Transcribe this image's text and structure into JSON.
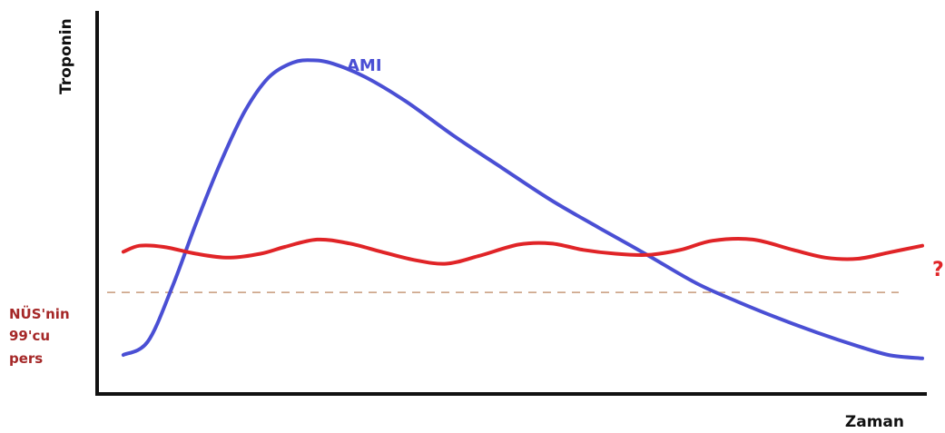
{
  "chart_data": {
    "type": "line",
    "title": "",
    "xlabel": "Zaman",
    "ylabel": "Troponin",
    "xlim": [
      0,
      100
    ],
    "ylim": [
      0,
      100
    ],
    "grid": false,
    "ticks": false,
    "series": [
      {
        "name": "AMI",
        "color": "#4a4fd4",
        "points": [
          [
            1,
            10.2
          ],
          [
            4,
            13.6
          ],
          [
            7,
            27.6
          ],
          [
            10,
            44.5
          ],
          [
            13,
            60.2
          ],
          [
            16,
            73.6
          ],
          [
            19,
            82.6
          ],
          [
            22,
            86.5
          ],
          [
            24.5,
            87.1
          ],
          [
            27,
            86.2
          ],
          [
            31,
            82.7
          ],
          [
            36,
            76.4
          ],
          [
            42,
            67.3
          ],
          [
            48,
            58.9
          ],
          [
            54,
            50.6
          ],
          [
            60,
            43.3
          ],
          [
            66,
            36.2
          ],
          [
            72,
            28.9
          ],
          [
            77,
            24.2
          ],
          [
            82,
            19.9
          ],
          [
            87,
            16.0
          ],
          [
            92,
            12.5
          ],
          [
            96,
            10.1
          ],
          [
            100,
            9.3
          ]
        ]
      },
      {
        "name": "?",
        "color": "#e02427",
        "points": [
          [
            1,
            37.1
          ],
          [
            3,
            38.7
          ],
          [
            6,
            38.4
          ],
          [
            10,
            36.6
          ],
          [
            14,
            35.6
          ],
          [
            18,
            36.6
          ],
          [
            21,
            38.4
          ],
          [
            25,
            40.3
          ],
          [
            29,
            39.3
          ],
          [
            33,
            37.1
          ],
          [
            37,
            35.0
          ],
          [
            41,
            34.0
          ],
          [
            45,
            36.0
          ],
          [
            50,
            39.0
          ],
          [
            54,
            39.3
          ],
          [
            58,
            37.6
          ],
          [
            62,
            36.6
          ],
          [
            66,
            36.3
          ],
          [
            70,
            37.6
          ],
          [
            74,
            40.0
          ],
          [
            79,
            40.3
          ],
          [
            84,
            37.6
          ],
          [
            88,
            35.6
          ],
          [
            92,
            35.3
          ],
          [
            96,
            37.0
          ],
          [
            100,
            38.7
          ]
        ]
      }
    ],
    "reference_line": {
      "label_lines": [
        "NÜS'nin",
        "99'cu",
        "pers"
      ],
      "y": 26.5,
      "color": "#c89a7a",
      "label_color": "#a52828",
      "style": "dashed"
    }
  }
}
